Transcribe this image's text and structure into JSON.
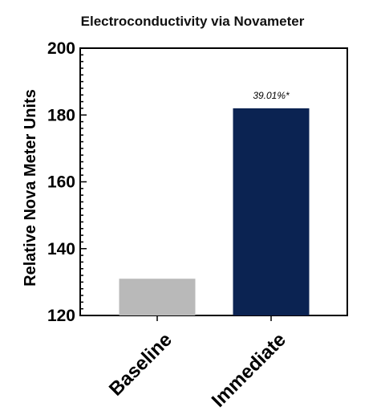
{
  "chart_data": {
    "type": "bar",
    "title": "Electroconductivity via Novameter",
    "xlabel": "",
    "ylabel": "Relative Nova Meter Units",
    "categories": [
      "Baseline",
      "Immediate"
    ],
    "values": [
      131,
      182
    ],
    "colors": [
      "#b9b9b9",
      "#0b2352"
    ],
    "ylim": [
      120,
      200
    ],
    "yticks": [
      "120",
      "140",
      "160",
      "180",
      "200"
    ],
    "annotations": [
      {
        "category": "Immediate",
        "text": "39.01%*"
      }
    ],
    "grid": false,
    "legend": "none"
  }
}
